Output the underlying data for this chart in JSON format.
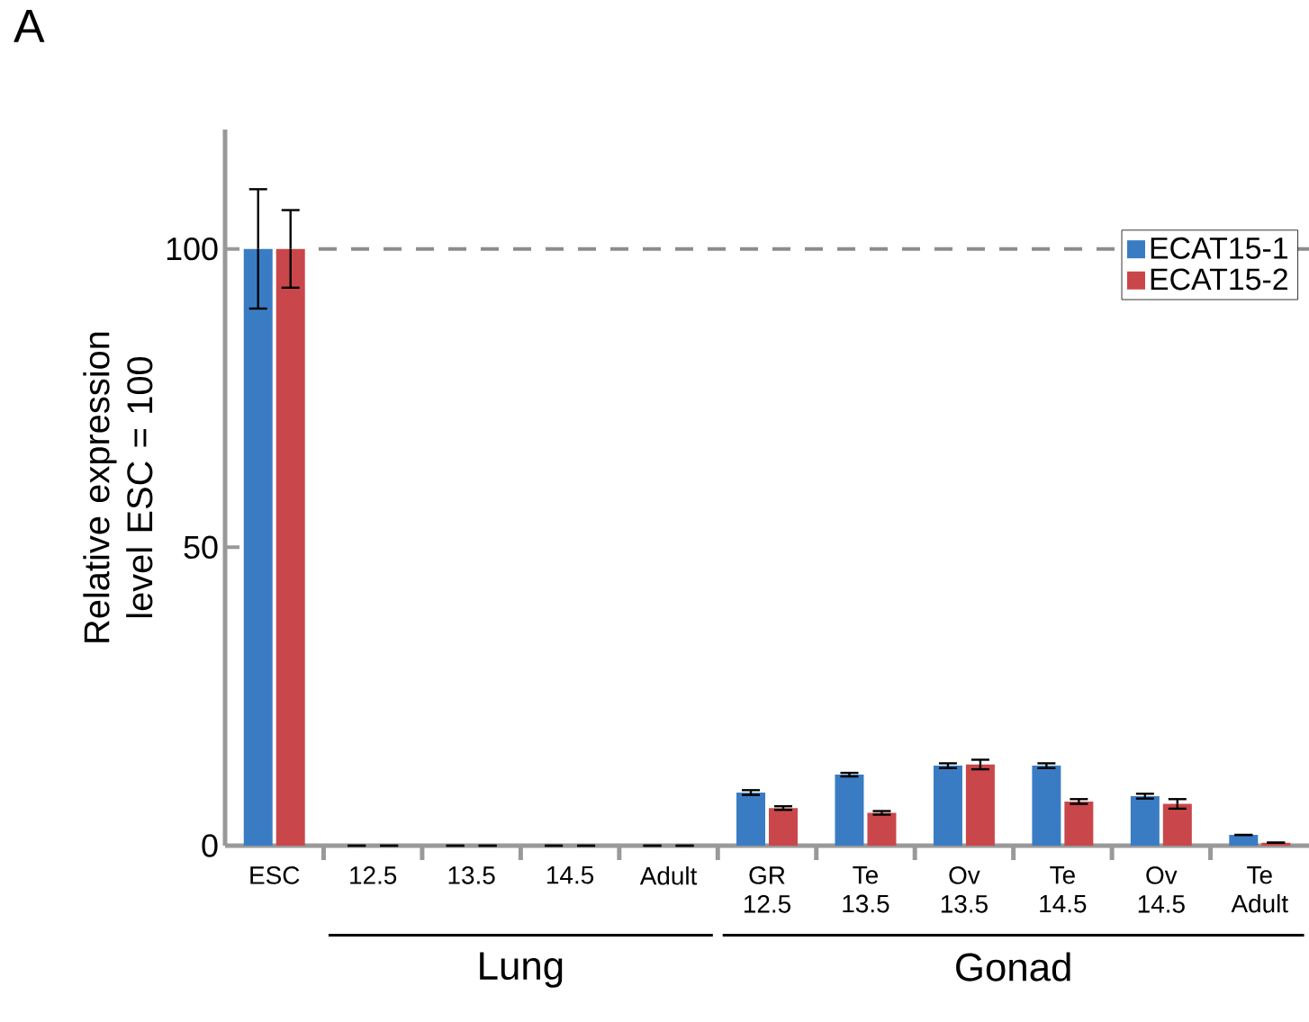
{
  "chart_data": {
    "type": "bar",
    "categories": [
      "ESC",
      "12.5",
      "13.5",
      "14.5",
      "Adult",
      "GR 12.5",
      "Te 13.5",
      "Ov 13.5",
      "Te 14.5",
      "Ov 14.5",
      "Te Adult"
    ],
    "ylabel": "Relative expression level ESC = 100",
    "annotations": [
      "A",
      "Lung",
      "Gonad"
    ],
    "series": [
      {
        "name": "ECAT15-1",
        "color": "#3a7cc4",
        "values": [
          100,
          0,
          0,
          0,
          0,
          8.9,
          11.9,
          13.4,
          13.4,
          8.3,
          1.8
        ],
        "errors": [
          10,
          null,
          null,
          null,
          null,
          0.4,
          0.3,
          0.4,
          0.4,
          0.4,
          null
        ]
      },
      {
        "name": "ECAT15-2",
        "color": "#c9474a",
        "values": [
          100,
          0,
          0,
          0,
          0,
          6.3,
          5.5,
          13.6,
          7.4,
          7.0,
          0.5
        ],
        "errors": [
          6.5,
          null,
          null,
          null,
          null,
          0.3,
          0.3,
          0.8,
          0.4,
          0.8,
          null
        ]
      }
    ],
    "ylim": [
      0,
      120
    ],
    "yticks": [
      0,
      50,
      100
    ],
    "ref_lines": [
      {
        "axis": "y",
        "value": 100,
        "color": "#8c8c8c",
        "line_style": "dashed"
      }
    ],
    "legend": "top right",
    "grid": false
  }
}
